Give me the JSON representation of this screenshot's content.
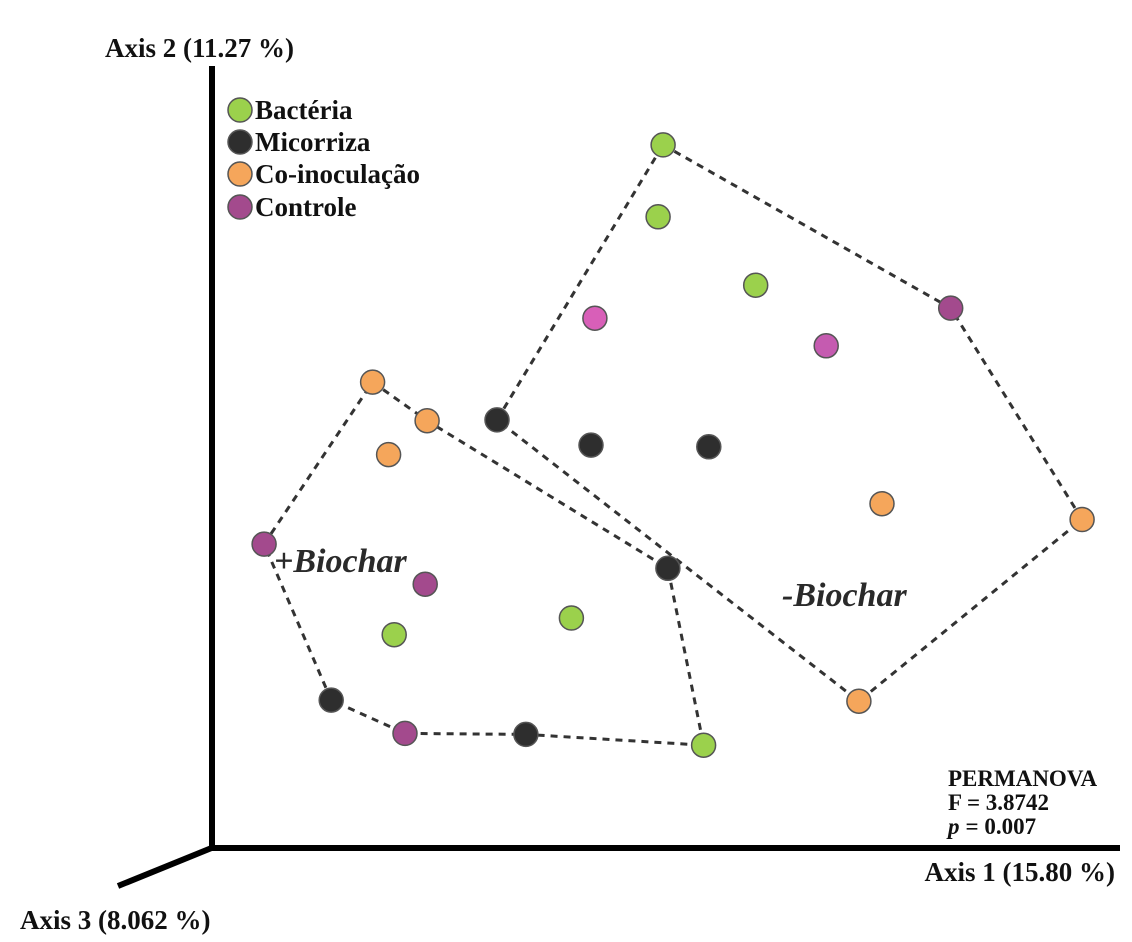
{
  "chart_data": {
    "type": "scatter",
    "title": "",
    "xlabel": "Axis 1 (15.80 %)",
    "ylabel": "Axis 2 (11.27 %)",
    "zlabel": "Axis 3 (8.062 %)",
    "xlim": [
      0,
      100
    ],
    "ylim": [
      0,
      100
    ],
    "grid": false,
    "legend_position": "top-left",
    "series": [
      {
        "name": "Bactéria",
        "color": "#9bd14c",
        "points": [
          {
            "x": 49.95,
            "y": 92.94
          },
          {
            "x": 49.37,
            "y": 82.33
          },
          {
            "x": 60.81,
            "y": 72.24
          },
          {
            "x": 18.43,
            "y": 20.7
          },
          {
            "x": 39.2,
            "y": 23.16
          },
          {
            "x": 54.7,
            "y": 4.4
          }
        ]
      },
      {
        "name": "Micorriza",
        "color": "#2e2e2e",
        "points": [
          {
            "x": 30.48,
            "y": 52.38
          },
          {
            "x": 41.5,
            "y": 48.66
          },
          {
            "x": 55.31,
            "y": 48.4
          },
          {
            "x": 50.51,
            "y": 30.49
          },
          {
            "x": 11.04,
            "y": 11.04
          },
          {
            "x": 33.87,
            "y": 5.99
          }
        ]
      },
      {
        "name": "Co-inoculação",
        "color": "#f5a65b",
        "points": [
          {
            "x": 15.9,
            "y": 57.95
          },
          {
            "x": 22.29,
            "y": 52.25
          },
          {
            "x": 17.77,
            "y": 47.26
          },
          {
            "x": 75.61,
            "y": 40.01
          },
          {
            "x": 99.07,
            "y": 37.68
          },
          {
            "x": 72.91,
            "y": 10.89
          }
        ]
      },
      {
        "name": "Controle",
        "color": "#b2509a",
        "points": [
          {
            "x": 41.96,
            "y": 67.37
          },
          {
            "x": 69.07,
            "y": 63.3
          },
          {
            "x": 83.67,
            "y": 68.87
          },
          {
            "x": 3.18,
            "y": 34.06
          },
          {
            "x": 22.06,
            "y": 28.14
          },
          {
            "x": 19.69,
            "y": 6.13
          }
        ],
        "point_colors": [
          "#d85fb8",
          "#c55bb0",
          "#a34a8d",
          "#a34a8d",
          "#a34a8d",
          "#a34a8d"
        ]
      }
    ],
    "groups": [
      {
        "label": "+Biochar",
        "hull": [
          [
            15.9,
            57.95
          ],
          [
            22.29,
            52.25
          ],
          [
            50.51,
            30.49
          ],
          [
            54.7,
            4.4
          ],
          [
            33.87,
            5.99
          ],
          [
            19.69,
            6.13
          ],
          [
            11.04,
            11.04
          ],
          [
            3.18,
            34.06
          ]
        ]
      },
      {
        "label": "-Biochar",
        "hull": [
          [
            49.95,
            92.94
          ],
          [
            83.67,
            68.87
          ],
          [
            99.07,
            37.68
          ],
          [
            72.91,
            10.89
          ],
          [
            30.48,
            52.38
          ]
        ]
      }
    ],
    "annotations": {
      "test": "PERMANOVA",
      "f_stat": "F = 3.8742",
      "p_label": "p",
      "p_value": "= 0.007"
    }
  }
}
